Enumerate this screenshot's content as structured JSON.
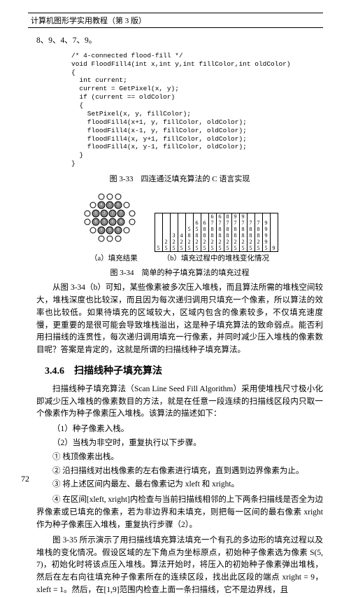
{
  "header": {
    "title": "计算机图形学实用教程（第 3 版）"
  },
  "sequence": "8、9、4、7、9。",
  "code": {
    "c1": "/* 4-connected flood-fill */",
    "c2": "void FloodFill4(int x,int y,int fillColor,int oldColor)",
    "c3": "{",
    "c4": "  int current;",
    "c5": "  current = GetPixel(x, y);",
    "c6": "  if (current == oldColor)",
    "c7": "  {",
    "c8": "    SetPixel(x, y, fillColor);",
    "c9": "    floodFill4(x+1, y, fillColor, oldColor);",
    "c10": "    floodFill4(x-1, y, fillColor, oldColor);",
    "c11": "    floodFill4(x, y+1, fillColor, oldColor);",
    "c12": "    floodFill4(x, y-1, fillColor, oldColor);",
    "c13": "  }",
    "c14": "}"
  },
  "fig33": "图 3-33　四连通泛填充算法的 C 语言实现",
  "fig34": {
    "sub_a": "（a）填充结果",
    "sub_b": "（b）填充过程中的堆栈变化情况",
    "caption": "图 3-34　简单的种子填充算法的填充过程",
    "stacks": [
      [
        "5"
      ],
      [
        "5",
        "2"
      ],
      [
        "5",
        "2",
        "3"
      ],
      [
        "5",
        "2",
        "4"
      ],
      [
        "5",
        "2",
        "8",
        "5"
      ],
      [
        "5",
        "2",
        "8",
        "5",
        "6"
      ],
      [
        "5",
        "2",
        "8",
        "8",
        "6"
      ],
      [
        "5",
        "2",
        "8",
        "8",
        "7",
        "6"
      ],
      [
        "5",
        "2",
        "8",
        "8",
        "7",
        "6"
      ],
      [
        "5",
        "2",
        "8",
        "8",
        "7",
        "8"
      ],
      [
        "5",
        "2",
        "8",
        "8",
        "7",
        "9"
      ],
      [
        "5",
        "2",
        "8",
        "8",
        "7",
        "9"
      ],
      [
        "5",
        "2",
        "8",
        "8",
        "7"
      ],
      [
        "5",
        "2",
        "8",
        "8",
        "7"
      ],
      [
        "5",
        "9",
        "9",
        "9",
        "9"
      ],
      [
        "9"
      ]
    ]
  },
  "para1": "从图 3-34（b）可知，某些像素被多次压入堆栈，而且算法所需的堆栈空间较大，堆栈深度也比较深，而且因为每次递归调用只填充一个像素，所以算法的效率也比较低。如果待填充的区域较大，区域内包含的像素较多，不仅填充速度慢，更重要的是很可能会导致堆栈溢出，这是种子填充算法的致命弱点。能否利用扫描线的连贯性，每次递归调用填充一行像素，并同时减少压入堆栈的像素数目呢？答案是肯定的，这就是所谓的扫描线种子填充算法。",
  "section": "3.4.6　扫描线种子填充算法",
  "para2": "扫描线种子填充算法（Scan Line Seed Fill Algorithm）采用使堆栈尺寸极小化即减少压入堆栈的像素数目的方法，就是在任意一段连续的扫描线区段内只取一个像素作为种子像素压入堆栈。该算法的描述如下：",
  "items": [
    "（1）种子像素入栈。",
    "（2）当栈为非空时，重复执行以下步骤。",
    "① 栈顶像素出栈。",
    "② 沿扫描线对出栈像素的左右像素进行填充，直到遇到边界像素为止。",
    "③ 将上述区间内最左、最右像素记为 xleft 和 xright。"
  ],
  "item4": "④ 在区间[xleft, xright]内检查与当前扫描线相邻的上下两条扫描线是否全为边界像素或已填充的像素，若为非边界和未填充，则把每一区间的最右像素 xright 作为种子像素压入堆栈，重复执行步骤（2）。",
  "para3": "图 3-35 所示演示了用扫描线填充算法填充一个有孔的多边形的填充过程以及堆栈的变化情况。假设区域的左下角点为坐标原点，初始种子像素选为像素 S(5, 7)，初始化时将该点压入堆栈。算法开始时，将压入的初始种子像素弹出堆栈，然后在左右向往填充种子像素所在的连续区段，找出此区段的端点 xright = 9，xleft = 1。然后，在[1,9]范围内检查上面一条扫描线，它不是边界线，且",
  "page_num": "72"
}
